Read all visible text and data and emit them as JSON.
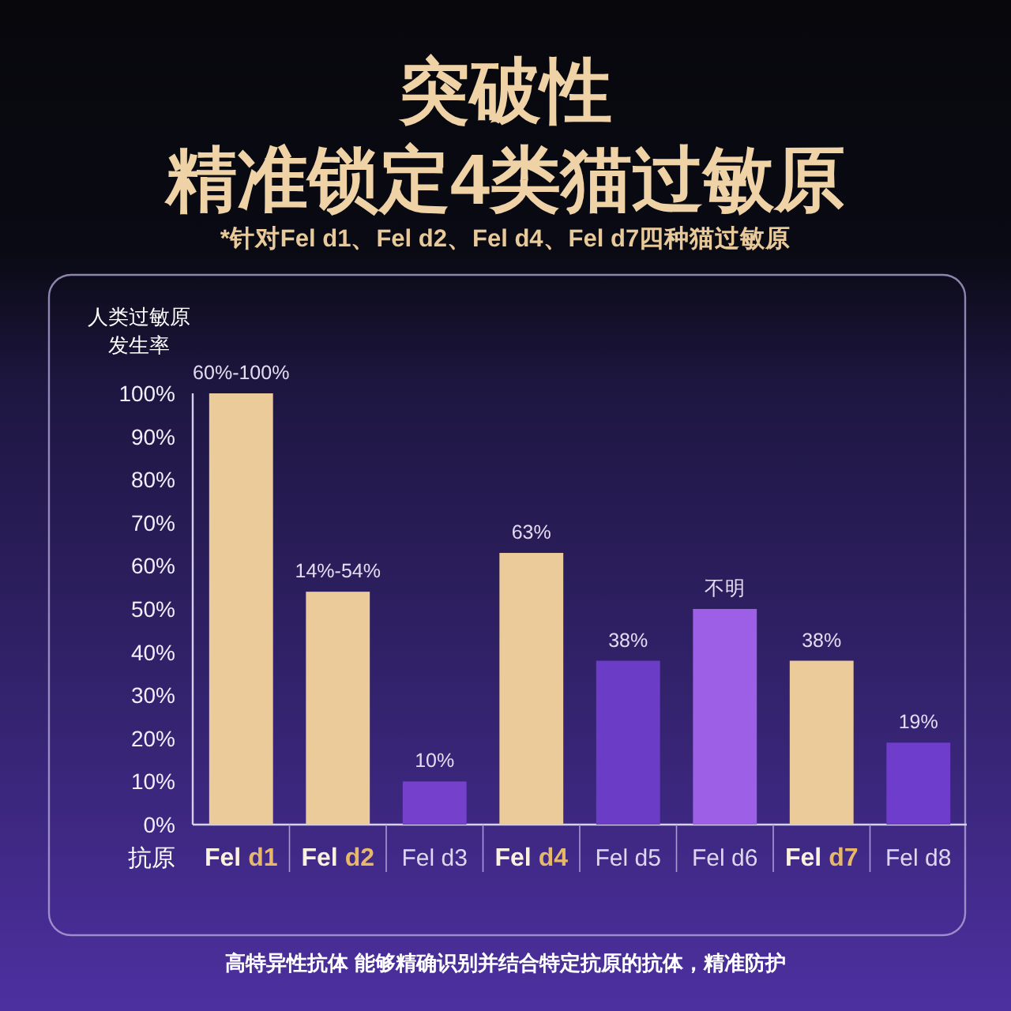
{
  "chart_data": {
    "type": "bar",
    "title": "突破性",
    "subtitle": "精准锁定4类猫过敏原",
    "ylabel": "人类过敏原发生率",
    "xlabel": "抗原",
    "annotations": [
      "*针对Fel d1、Fel d2、Fel d4、Fel d7四种猫过敏原",
      "高特异性抗体 能够精确识别并结合特定抗原的抗体，精准防护",
      {
        "text": "60%-100%",
        "x": "Fel d1",
        "y": 100
      },
      {
        "text": "14%-54%",
        "x": "Fel d2",
        "y": 54
      }
    ],
    "categories": [
      "Fel d1",
      "Fel d2",
      "Fel d3",
      "Fel d4",
      "Fel d5",
      "Fel d6",
      "Fel d7",
      "Fel d8"
    ],
    "values": [
      100,
      54,
      10,
      63,
      38,
      50,
      38,
      19
    ],
    "value_labels": [
      null,
      null,
      "10%",
      "63%",
      "38%",
      "不明",
      "38%",
      "19%"
    ],
    "colors": [
      "#ebcb99",
      "#ebcb99",
      "#7541cc",
      "#ebcb99",
      "#6b3cc6",
      "#9c5fe6",
      "#ebcb99",
      "#6f3dcc"
    ],
    "ylim": [
      0,
      100
    ],
    "yticks": [
      {
        "value": 0,
        "label": "0%"
      },
      {
        "value": 10,
        "label": "10%"
      },
      {
        "value": 20,
        "label": "20%"
      },
      {
        "value": 30,
        "label": "30%"
      },
      {
        "value": 40,
        "label": "40%"
      },
      {
        "value": 50,
        "label": "50%"
      },
      {
        "value": 60,
        "label": "60%"
      },
      {
        "value": 70,
        "label": "70%"
      },
      {
        "value": 80,
        "label": "80%"
      },
      {
        "value": 90,
        "label": "90%"
      },
      {
        "value": 100,
        "label": "100%"
      }
    ]
  }
}
